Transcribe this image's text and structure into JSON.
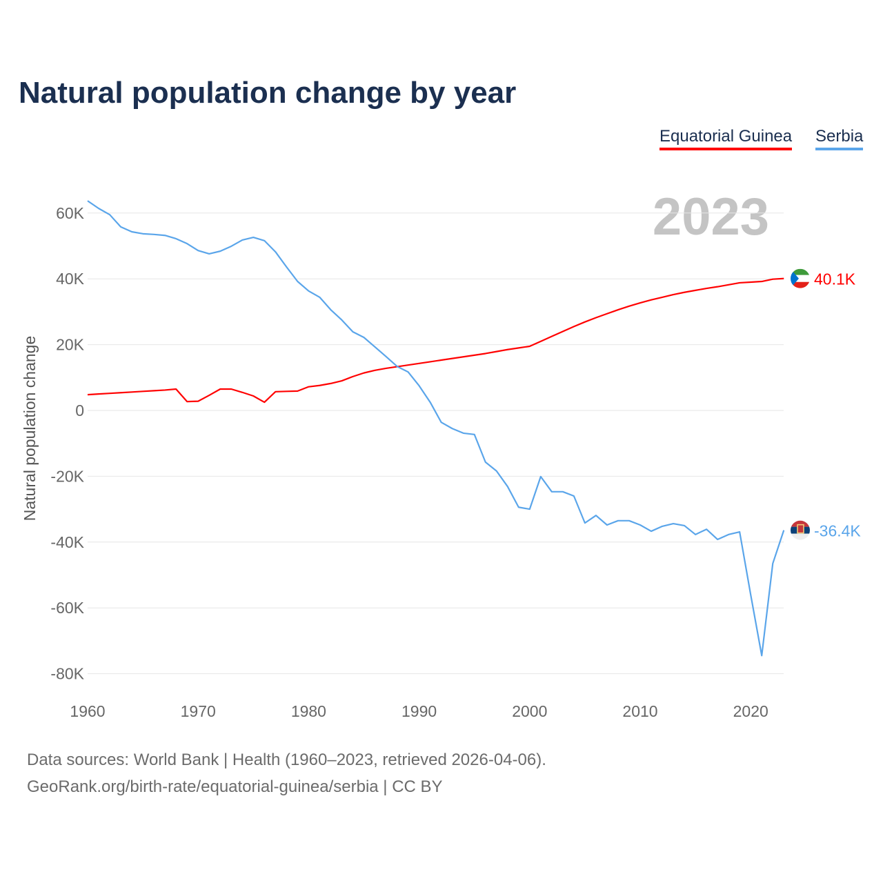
{
  "title": "Natural population change by year",
  "legend": [
    {
      "name": "Equatorial Guinea",
      "color": "#ff0000"
    },
    {
      "name": "Serbia",
      "color": "#5aa5ea"
    }
  ],
  "footer": {
    "line1": "Data sources: World Bank | Health (1960–2023, retrieved 2026-04-06).",
    "line2": "GeoRank.org/birth-rate/equatorial-guinea/serbia | CC BY"
  },
  "chart_data": {
    "type": "line",
    "title": "Natural population change by year",
    "ylabel": "Natural population change",
    "year_label": "2023",
    "ylim": [
      -80000,
      70000
    ],
    "xlim": [
      1960,
      2023
    ],
    "yticks": [
      {
        "v": 60000,
        "l": "60K"
      },
      {
        "v": 40000,
        "l": "40K"
      },
      {
        "v": 20000,
        "l": "20K"
      },
      {
        "v": 0,
        "l": "0"
      },
      {
        "v": -20000,
        "l": "-20K"
      },
      {
        "v": -40000,
        "l": "-40K"
      },
      {
        "v": -60000,
        "l": "-60K"
      },
      {
        "v": -80000,
        "l": "-80K"
      }
    ],
    "xticks": [
      "1960",
      "1970",
      "1980",
      "1990",
      "2000",
      "2010",
      "2020"
    ],
    "x_start": 1960,
    "series": [
      {
        "name": "Equatorial Guinea",
        "color": "#ff0000",
        "end_label": "40.1K",
        "values": [
          4.8,
          5.0,
          5.2,
          5.4,
          5.6,
          5.8,
          6.0,
          6.2,
          6.5,
          2.7,
          2.8,
          4.6,
          6.5,
          6.5,
          5.5,
          4.4,
          2.5,
          5.7,
          5.8,
          5.9,
          7.2,
          7.6,
          8.2,
          9.0,
          10.3,
          11.4,
          12.2,
          12.8,
          13.3,
          13.8,
          14.3,
          14.8,
          15.3,
          15.8,
          16.3,
          16.8,
          17.3,
          17.9,
          18.5,
          19.0,
          19.5,
          21.0,
          22.5,
          24.0,
          25.5,
          26.9,
          28.2,
          29.4,
          30.6,
          31.7,
          32.7,
          33.6,
          34.4,
          35.2,
          35.9,
          36.5,
          37.1,
          37.6,
          38.2,
          38.8,
          39.0,
          39.2,
          39.9,
          40.1
        ]
      },
      {
        "name": "Serbia",
        "color": "#5aa5ea",
        "end_label": "-36.4K",
        "values": [
          63.7,
          61.4,
          59.5,
          55.8,
          54.3,
          53.7,
          53.5,
          53.2,
          52.2,
          50.7,
          48.6,
          47.6,
          48.4,
          49.9,
          51.8,
          52.6,
          51.6,
          48.2,
          43.6,
          39.2,
          36.3,
          34.4,
          30.6,
          27.5,
          23.9,
          22.2,
          19.3,
          16.4,
          13.4,
          11.7,
          7.5,
          2.5,
          -3.6,
          -5.5,
          -6.9,
          -7.3,
          -15.7,
          -18.4,
          -23.1,
          -29.4,
          -30.0,
          -20.1,
          -24.7,
          -24.7,
          -26.0,
          -34.2,
          -31.9,
          -34.8,
          -33.5,
          -33.5,
          -34.8,
          -36.7,
          -35.2,
          -34.4,
          -35.0,
          -37.7,
          -36.1,
          -39.2,
          -37.7,
          -36.9,
          -56.0,
          -74.5,
          -46.5,
          -36.4
        ]
      }
    ],
    "value_unit": "thousands"
  }
}
